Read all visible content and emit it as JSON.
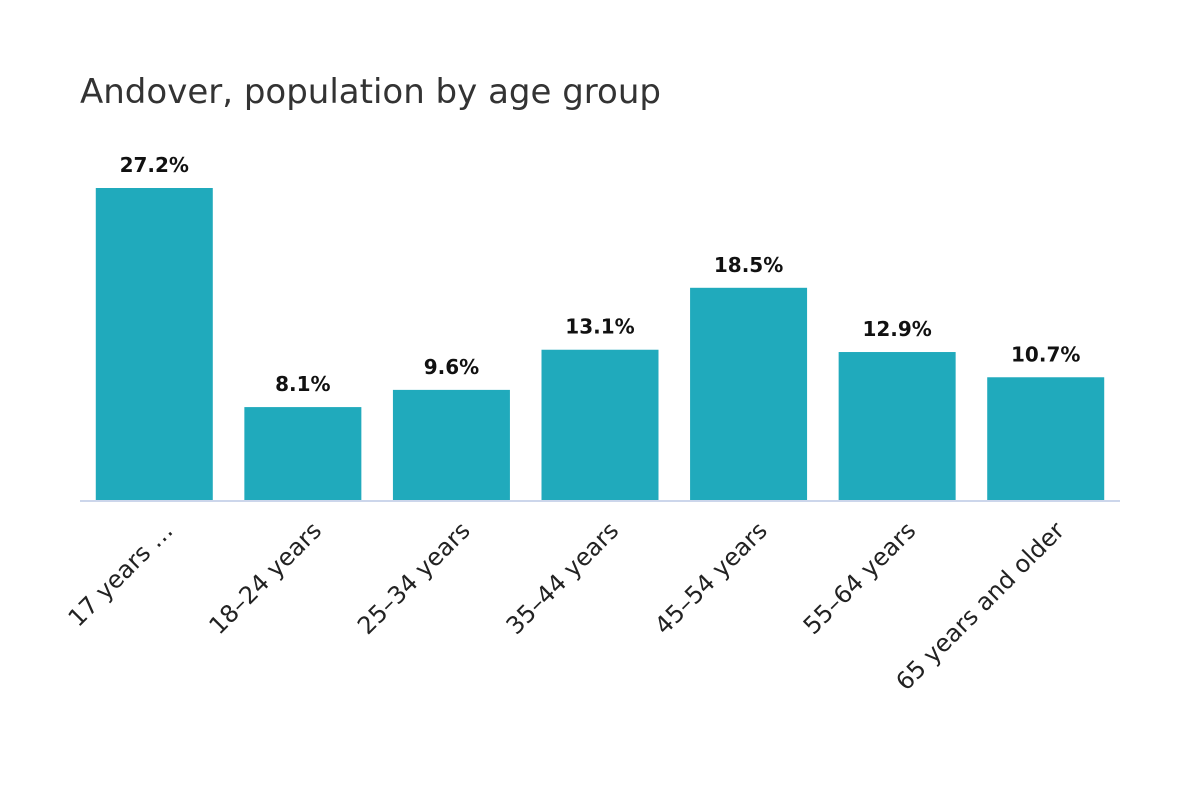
{
  "chart_data": {
    "type": "bar",
    "title": "Andover, population by age group",
    "categories": [
      "17 years …",
      "18–24 years",
      "25–34 years",
      "35–44 years",
      "45–54 years",
      "55–64 years",
      "65 years and older"
    ],
    "values": [
      27.2,
      8.1,
      9.6,
      13.1,
      18.5,
      12.9,
      10.7
    ],
    "value_labels": [
      "27.2%",
      "8.1%",
      "9.6%",
      "13.1%",
      "18.5%",
      "12.9%",
      "10.7%"
    ],
    "ylim": [
      0,
      27.2
    ],
    "grid": false,
    "legend": "none",
    "bar_color": "#20aabc",
    "axis_color": "#ccd6eb"
  }
}
